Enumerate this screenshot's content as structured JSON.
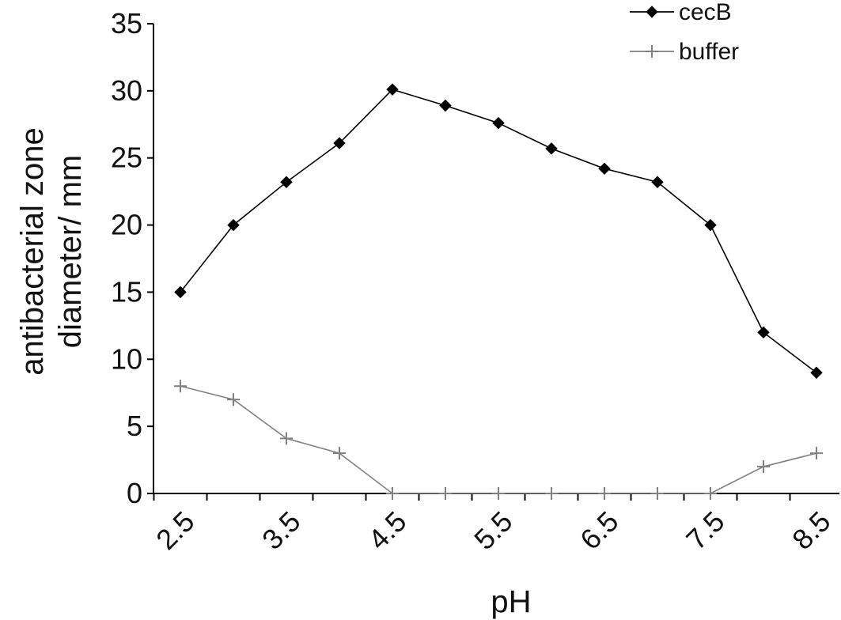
{
  "chart_data": {
    "type": "line",
    "title": "",
    "xlabel": "pH",
    "ylabel": "antibacterial zone diameter/ mm",
    "x": [
      2.5,
      3.0,
      3.5,
      4.0,
      4.5,
      5.0,
      5.5,
      6.0,
      6.5,
      7.0,
      7.5,
      8.0,
      8.5
    ],
    "x_tick_labels": [
      "2.5",
      "3.5",
      "4.5",
      "5.5",
      "6.5",
      "7.5",
      "8.5"
    ],
    "y_tick_labels": [
      "0",
      "5",
      "10",
      "15",
      "20",
      "25",
      "30",
      "35"
    ],
    "ylim": [
      0,
      35
    ],
    "xlim": [
      2.5,
      8.5
    ],
    "grid": false,
    "legend_position": "top-right",
    "series": [
      {
        "name": "cecB",
        "values": [
          15,
          20,
          23.2,
          26.1,
          30.1,
          28.9,
          27.6,
          25.7,
          24.2,
          23.2,
          20,
          12,
          9
        ],
        "color": "#000000",
        "marker": "diamond"
      },
      {
        "name": "buffer",
        "values": [
          8,
          7,
          4.1,
          3,
          0,
          0,
          0,
          0,
          0,
          0,
          0,
          2,
          3
        ],
        "color": "#808080",
        "marker": "plus"
      }
    ]
  }
}
